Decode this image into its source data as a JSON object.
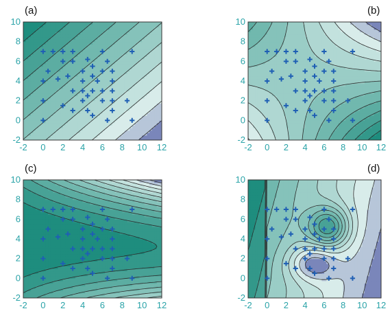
{
  "figure": {
    "tick_color": "#2aa3a8",
    "marker_color": "#1f5fb4",
    "contour_line_color": "#2b2b2b",
    "frame_color": "#333333",
    "fill_high_color": "#148878",
    "fill_low_color": "#dff0ee",
    "fill_lowest_color": "#5c66aa"
  },
  "chart_data": [
    {
      "type": "contour",
      "panel_label": "(a)",
      "xlim": [
        -2,
        12
      ],
      "ylim": [
        -2,
        10
      ],
      "xticks": [
        -2,
        0,
        2,
        4,
        6,
        8,
        10,
        12
      ],
      "yticks": [
        -2,
        0,
        2,
        4,
        6,
        8,
        10
      ],
      "xtick_labels": [
        "-2",
        "0",
        "2",
        "4",
        "6",
        "8",
        "10",
        "12"
      ],
      "ytick_labels": [
        "-2",
        "0",
        "2",
        "4",
        "6",
        "8",
        "10"
      ],
      "surface": "linear-diagonal",
      "points": [
        [
          0,
          7
        ],
        [
          1,
          7
        ],
        [
          2,
          7
        ],
        [
          0.5,
          5
        ],
        [
          2,
          6
        ],
        [
          3,
          7
        ],
        [
          1.5,
          4.2
        ],
        [
          2.5,
          4.5
        ],
        [
          0,
          4
        ],
        [
          3,
          6
        ],
        [
          4,
          5
        ],
        [
          4.5,
          6.2
        ],
        [
          5,
          5.5
        ],
        [
          6,
          7
        ],
        [
          5,
          4.5
        ],
        [
          4,
          4
        ],
        [
          3,
          3
        ],
        [
          5,
          3
        ],
        [
          6,
          3
        ],
        [
          4,
          2
        ],
        [
          3,
          1
        ],
        [
          2,
          1.5
        ],
        [
          0,
          2
        ],
        [
          0,
          0
        ],
        [
          4.5,
          1
        ],
        [
          5,
          0.5
        ],
        [
          6,
          2
        ],
        [
          7,
          5
        ],
        [
          7,
          4
        ],
        [
          6,
          5
        ],
        [
          6.5,
          6
        ],
        [
          7,
          3
        ],
        [
          7,
          2
        ],
        [
          7,
          1
        ],
        [
          6.5,
          0
        ],
        [
          8.5,
          2
        ],
        [
          9,
          7
        ],
        [
          9,
          0
        ],
        [
          4,
          3
        ],
        [
          4.5,
          2.5
        ],
        [
          5.5,
          4
        ]
      ]
    },
    {
      "type": "contour",
      "panel_label": "(b)",
      "xlim": [
        -2,
        12
      ],
      "ylim": [
        -2,
        10
      ],
      "xticks": [
        -2,
        0,
        2,
        4,
        6,
        8,
        10,
        12
      ],
      "yticks": [
        -2,
        0,
        2,
        4,
        6,
        8,
        10
      ],
      "xtick_labels": [
        "-2",
        "0",
        "2",
        "4",
        "6",
        "8",
        "10",
        "12"
      ],
      "ytick_labels": [
        "-2",
        "0",
        "2",
        "4",
        "6",
        "8",
        "10"
      ],
      "surface": "saddle",
      "points": [
        [
          0,
          7
        ],
        [
          1,
          7
        ],
        [
          2,
          7
        ],
        [
          0.5,
          5
        ],
        [
          2,
          6
        ],
        [
          3,
          7
        ],
        [
          1.5,
          4.2
        ],
        [
          2.5,
          4.5
        ],
        [
          0,
          4
        ],
        [
          3,
          6
        ],
        [
          4,
          5
        ],
        [
          4.5,
          6.2
        ],
        [
          5,
          5.5
        ],
        [
          6,
          7
        ],
        [
          5,
          4.5
        ],
        [
          4,
          4
        ],
        [
          3,
          3
        ],
        [
          5,
          3
        ],
        [
          6,
          3
        ],
        [
          4,
          2
        ],
        [
          3,
          1
        ],
        [
          2,
          1.5
        ],
        [
          0,
          2
        ],
        [
          0,
          0
        ],
        [
          4.5,
          1
        ],
        [
          5,
          0.5
        ],
        [
          6,
          2
        ],
        [
          7,
          5
        ],
        [
          7,
          4
        ],
        [
          6,
          5
        ],
        [
          6.5,
          6
        ],
        [
          7,
          3
        ],
        [
          7,
          2
        ],
        [
          7,
          1
        ],
        [
          6.5,
          0
        ],
        [
          8.5,
          2
        ],
        [
          9,
          7
        ],
        [
          9,
          0
        ],
        [
          4,
          3
        ],
        [
          4.5,
          2.5
        ],
        [
          5.5,
          4
        ]
      ]
    },
    {
      "type": "contour",
      "panel_label": "(c)",
      "xlim": [
        -2,
        12
      ],
      "ylim": [
        -2,
        10
      ],
      "xticks": [
        -2,
        0,
        2,
        4,
        6,
        8,
        10,
        12
      ],
      "yticks": [
        -2,
        0,
        2,
        4,
        6,
        8,
        10
      ],
      "xtick_labels": [
        "-2",
        "0",
        "2",
        "4",
        "6",
        "8",
        "10",
        "12"
      ],
      "ytick_labels": [
        "-2",
        "0",
        "2",
        "4",
        "6",
        "8",
        "10"
      ],
      "surface": "horizontal-ridge",
      "points": [
        [
          0,
          7
        ],
        [
          1,
          7
        ],
        [
          2,
          7
        ],
        [
          0.5,
          5
        ],
        [
          2,
          6
        ],
        [
          3,
          7
        ],
        [
          1.5,
          4.2
        ],
        [
          2.5,
          4.5
        ],
        [
          0,
          4
        ],
        [
          3,
          6
        ],
        [
          4,
          5
        ],
        [
          4.5,
          6.2
        ],
        [
          5,
          5.5
        ],
        [
          6,
          7
        ],
        [
          5,
          4.5
        ],
        [
          4,
          4
        ],
        [
          3,
          3
        ],
        [
          5,
          3
        ],
        [
          6,
          3
        ],
        [
          4,
          2
        ],
        [
          3,
          1
        ],
        [
          2,
          1.5
        ],
        [
          0,
          2
        ],
        [
          0,
          0
        ],
        [
          4.5,
          1
        ],
        [
          5,
          0.5
        ],
        [
          6,
          2
        ],
        [
          7,
          5
        ],
        [
          7,
          4
        ],
        [
          6,
          5
        ],
        [
          6.5,
          6
        ],
        [
          7,
          3
        ],
        [
          7,
          2
        ],
        [
          7,
          1
        ],
        [
          6.5,
          0
        ],
        [
          8.5,
          2
        ],
        [
          9,
          7
        ],
        [
          9,
          0
        ],
        [
          4,
          3
        ],
        [
          4.5,
          2.5
        ],
        [
          5.5,
          4
        ]
      ]
    },
    {
      "type": "contour",
      "panel_label": "(d)",
      "xlim": [
        -2,
        12
      ],
      "ylim": [
        -2,
        10
      ],
      "xticks": [
        -2,
        0,
        2,
        4,
        6,
        8,
        10,
        12
      ],
      "yticks": [
        -2,
        0,
        2,
        4,
        6,
        8,
        10
      ],
      "xtick_labels": [
        "-2",
        "0",
        "2",
        "4",
        "6",
        "8",
        "10",
        "12"
      ],
      "ytick_labels": [
        "-2",
        "0",
        "2",
        "4",
        "6",
        "8",
        "10"
      ],
      "surface": "peak-basin",
      "points": [
        [
          0,
          7
        ],
        [
          1,
          7
        ],
        [
          2,
          7
        ],
        [
          0.5,
          5
        ],
        [
          2,
          6
        ],
        [
          3,
          7
        ],
        [
          1.5,
          4.2
        ],
        [
          2.5,
          4.5
        ],
        [
          0,
          4
        ],
        [
          3,
          6
        ],
        [
          4,
          5
        ],
        [
          4.5,
          6.2
        ],
        [
          5,
          5.5
        ],
        [
          6,
          7
        ],
        [
          5,
          4.5
        ],
        [
          4,
          4
        ],
        [
          3,
          3
        ],
        [
          5,
          3
        ],
        [
          6,
          3
        ],
        [
          4,
          2
        ],
        [
          3,
          1
        ],
        [
          2,
          1.5
        ],
        [
          0,
          2
        ],
        [
          0,
          0
        ],
        [
          4.5,
          1
        ],
        [
          5,
          0.5
        ],
        [
          6,
          2
        ],
        [
          7,
          5
        ],
        [
          7,
          4
        ],
        [
          6,
          5
        ],
        [
          6.5,
          6
        ],
        [
          7,
          3
        ],
        [
          7,
          2
        ],
        [
          7,
          1
        ],
        [
          6.5,
          0
        ],
        [
          8.5,
          2
        ],
        [
          9,
          7
        ],
        [
          9,
          0
        ],
        [
          4,
          3
        ],
        [
          4.5,
          2.5
        ],
        [
          5.5,
          4
        ]
      ]
    }
  ]
}
